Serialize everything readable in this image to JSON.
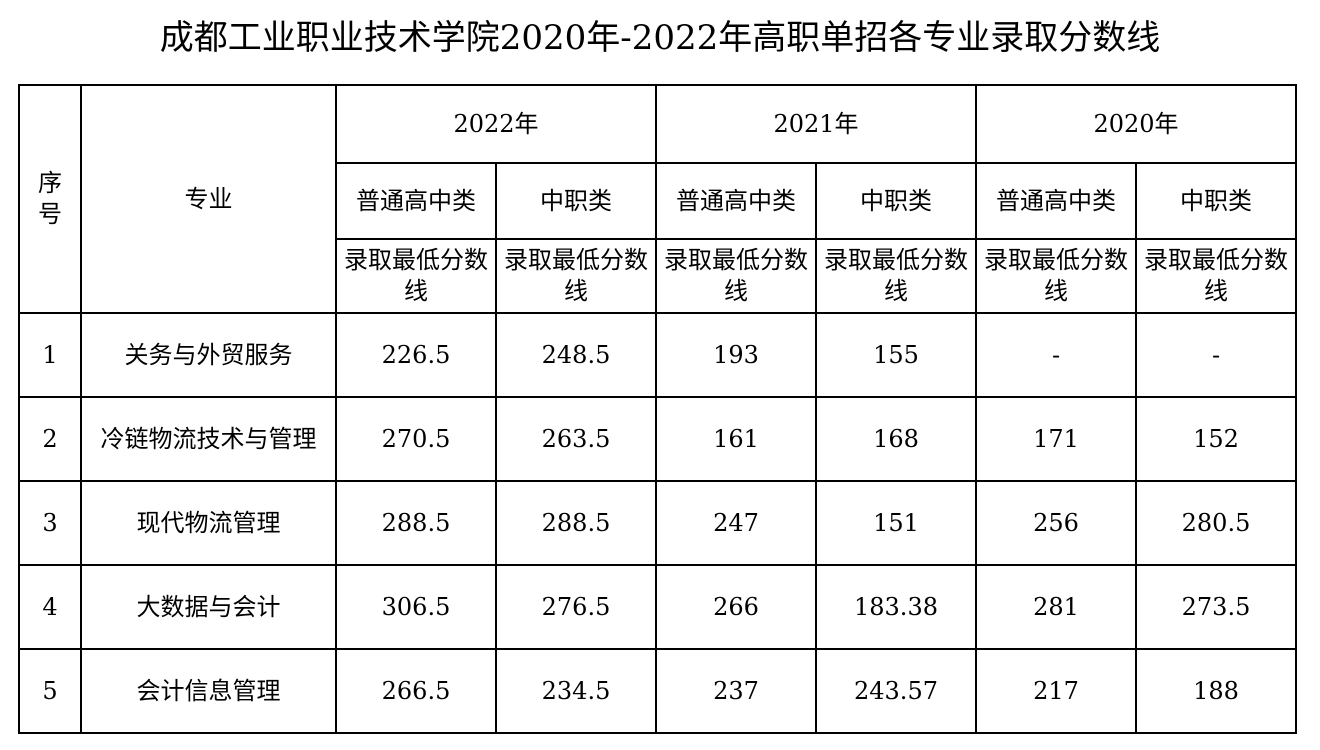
{
  "title": "成都工业职业技术学院2020年-2022年高职单招各专业录取分数线",
  "headers": {
    "index": "序\n号",
    "major": "专业",
    "years": [
      "2022年",
      "2021年",
      "2020年"
    ],
    "category_general": "普通高中类",
    "category_vocational": "中职类",
    "min_score": "录取最低分数线"
  },
  "rows": [
    {
      "index": "1",
      "major": "关务与外贸服务",
      "scores": [
        "226.5",
        "248.5",
        "193",
        "155",
        "-",
        "-"
      ]
    },
    {
      "index": "2",
      "major": "冷链物流技术与管理",
      "scores": [
        "270.5",
        "263.5",
        "161",
        "168",
        "171",
        "152"
      ]
    },
    {
      "index": "3",
      "major": "现代物流管理",
      "scores": [
        "288.5",
        "288.5",
        "247",
        "151",
        "256",
        "280.5"
      ]
    },
    {
      "index": "4",
      "major": "大数据与会计",
      "scores": [
        "306.5",
        "276.5",
        "266",
        "183.38",
        "281",
        "273.5"
      ]
    },
    {
      "index": "5",
      "major": "会计信息管理",
      "scores": [
        "266.5",
        "234.5",
        "237",
        "243.57",
        "217",
        "188"
      ]
    }
  ]
}
